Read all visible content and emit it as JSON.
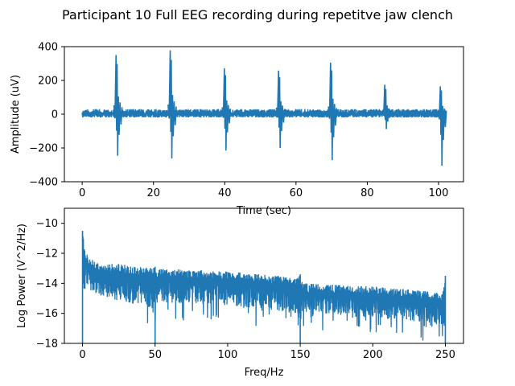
{
  "figure": {
    "title": "Participant 10 Full EEG recording during repetitve jaw clench"
  },
  "colors": {
    "series": "#1f77b4",
    "axes": "#000000",
    "background": "#ffffff"
  },
  "chart_data": [
    {
      "type": "line",
      "xlabel": "Time (sec)",
      "ylabel": "Amplitude (uV)",
      "xlim": [
        -5,
        107
      ],
      "ylim": [
        -400,
        400
      ],
      "xticks": [
        0,
        20,
        40,
        60,
        80,
        100
      ],
      "yticks": [
        -400,
        -200,
        0,
        200,
        400
      ],
      "grid": false,
      "x_range": [
        0,
        102
      ],
      "baseline_band": [
        -40,
        40
      ],
      "events": [
        {
          "t": 9.8,
          "peak": 350,
          "trough": -245
        },
        {
          "t": 25.0,
          "peak": 378,
          "trough": -262
        },
        {
          "t": 40.2,
          "peak": 272,
          "trough": -215
        },
        {
          "t": 55.4,
          "peak": 258,
          "trough": -200
        },
        {
          "t": 70.0,
          "peak": 305,
          "trough": -272
        },
        {
          "t": 85.2,
          "peak": 175,
          "trough": -88
        },
        {
          "t": 100.8,
          "peak": 165,
          "trough": -305
        }
      ]
    },
    {
      "type": "line",
      "xlabel": "Freq/Hz",
      "ylabel": "Log Power (V^2/Hz)",
      "xlim": [
        -12.5,
        262.5
      ],
      "ylim": [
        -18,
        -9
      ],
      "xticks": [
        0,
        50,
        100,
        150,
        200,
        250
      ],
      "yticks": [
        -18,
        -16,
        -14,
        -12,
        -10
      ],
      "grid": false,
      "x_range": [
        0,
        250
      ],
      "points": [
        {
          "f": 0,
          "upper": -10.5,
          "lower": -18.0
        },
        {
          "f": 2,
          "upper": -12.0,
          "lower": -15.0
        },
        {
          "f": 10,
          "upper": -12.6,
          "lower": -15.5
        },
        {
          "f": 25,
          "upper": -12.7,
          "lower": -16.0
        },
        {
          "f": 48,
          "upper": -13.0,
          "lower": -16.5
        },
        {
          "f": 50,
          "upper": -12.9,
          "lower": -18.0
        },
        {
          "f": 52,
          "upper": -13.0,
          "lower": -16.0
        },
        {
          "f": 100,
          "upper": -13.2,
          "lower": -16.3
        },
        {
          "f": 148,
          "upper": -13.6,
          "lower": -16.8
        },
        {
          "f": 150,
          "upper": -13.4,
          "lower": -18.0
        },
        {
          "f": 152,
          "upper": -14.0,
          "lower": -16.5
        },
        {
          "f": 200,
          "upper": -14.2,
          "lower": -17.0
        },
        {
          "f": 248,
          "upper": -14.6,
          "lower": -17.5
        },
        {
          "f": 250,
          "upper": -13.5,
          "lower": -18.0
        }
      ]
    }
  ]
}
